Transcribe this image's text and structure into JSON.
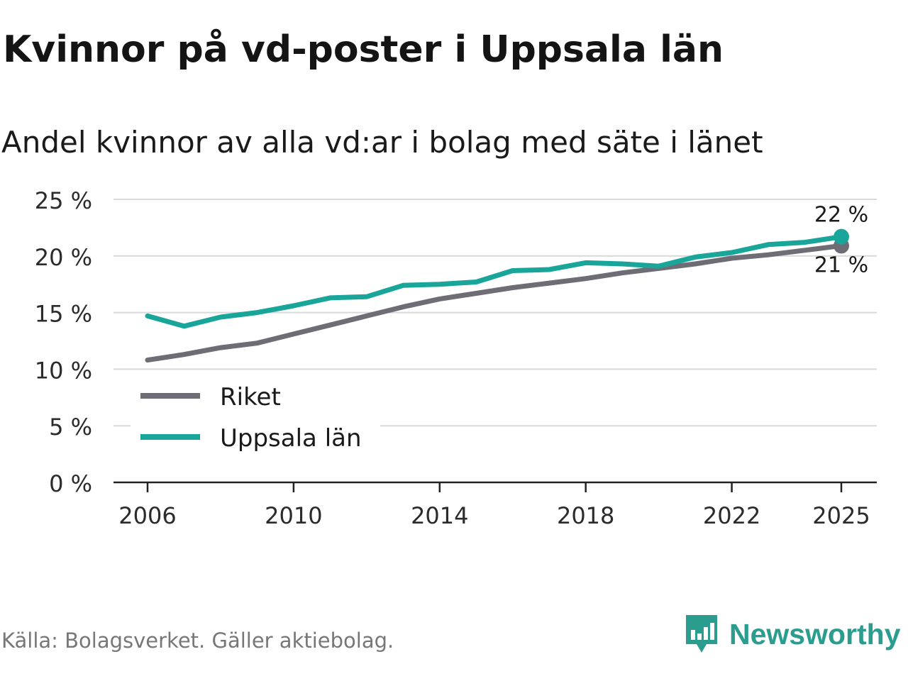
{
  "title": "Kvinnor på vd-poster i Uppsala län",
  "subtitle": "Andel kvinnor av alla vd:ar i bolag med säte i länet",
  "source": "Källa: Bolagsverket. Gäller aktiebolag.",
  "brand": {
    "name": "Newsworthy",
    "color": "#2a9d8f"
  },
  "chart_data": {
    "type": "line",
    "x": [
      2006,
      2007,
      2008,
      2009,
      2010,
      2011,
      2012,
      2013,
      2014,
      2015,
      2016,
      2017,
      2018,
      2019,
      2020,
      2021,
      2022,
      2023,
      2024,
      2025
    ],
    "series": [
      {
        "name": "Riket",
        "color": "#6e6d75",
        "values": [
          10.8,
          11.3,
          11.9,
          12.3,
          13.1,
          13.9,
          14.7,
          15.5,
          16.2,
          16.7,
          17.2,
          17.6,
          18.0,
          18.5,
          18.9,
          19.3,
          19.8,
          20.1,
          20.5,
          20.9
        ],
        "end_label": "21 %"
      },
      {
        "name": "Uppsala län",
        "color": "#1aa59a",
        "values": [
          14.7,
          13.8,
          14.6,
          15.0,
          15.6,
          16.3,
          16.4,
          17.4,
          17.5,
          17.7,
          18.7,
          18.8,
          19.4,
          19.3,
          19.1,
          19.9,
          20.3,
          21.0,
          21.2,
          21.7
        ],
        "end_label": "22 %"
      }
    ],
    "ylim": [
      0,
      25
    ],
    "yticks": [
      0,
      5,
      10,
      15,
      20,
      25
    ],
    "ytick_labels": [
      "0 %",
      "5 %",
      "10 %",
      "15 %",
      "20 %",
      "25 %"
    ],
    "xticks": [
      2006,
      2010,
      2014,
      2018,
      2022,
      2025
    ],
    "xtick_labels": [
      "2006",
      "2010",
      "2014",
      "2018",
      "2022",
      "2025"
    ],
    "legend": {
      "position": "lower-left",
      "entries": [
        "Riket",
        "Uppsala län"
      ]
    },
    "grid": true,
    "xlabel": "",
    "ylabel": ""
  }
}
